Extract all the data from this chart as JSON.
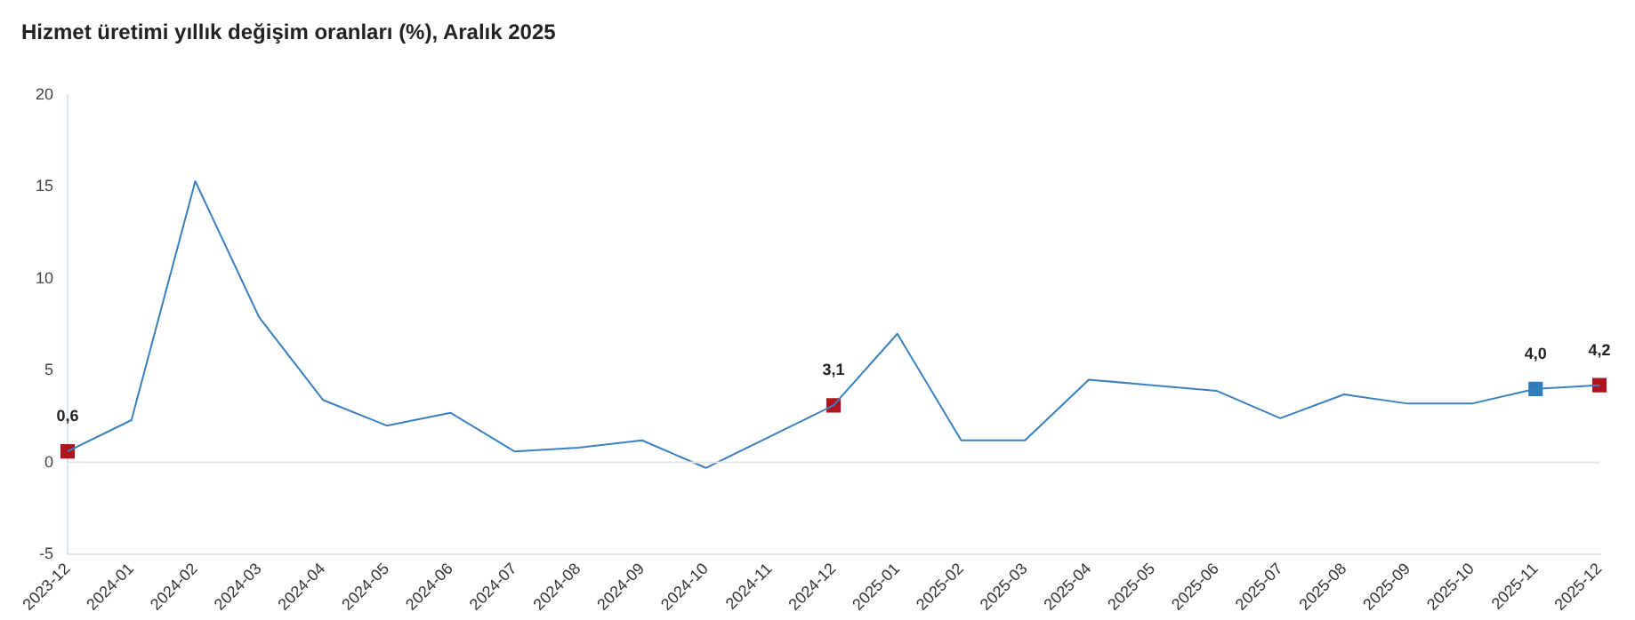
{
  "chart_data": {
    "type": "line",
    "title": "Hizmet üretimi yıllık değişim oranları (%), Aralık 2025",
    "categories": [
      "2023-12",
      "2024-01",
      "2024-02",
      "2024-03",
      "2024-04",
      "2024-05",
      "2024-06",
      "2024-07",
      "2024-08",
      "2024-09",
      "2024-10",
      "2024-11",
      "2024-12",
      "2025-01",
      "2025-02",
      "2025-03",
      "2025-04",
      "2025-05",
      "2025-06",
      "2025-07",
      "2025-08",
      "2025-09",
      "2025-10",
      "2025-11",
      "2025-12"
    ],
    "series": [
      {
        "type": "line",
        "color": "#3a80c0",
        "marker": "none",
        "values": [
          0.6,
          2.3,
          15.3,
          7.9,
          3.4,
          2.0,
          2.7,
          0.6,
          0.8,
          1.2,
          -0.3,
          1.4,
          3.1,
          7.0,
          1.2,
          1.2,
          4.5,
          4.2,
          3.9,
          2.4,
          3.7,
          3.2,
          3.2,
          4.0,
          4.2
        ]
      },
      {
        "type": "scatter",
        "marker": "square",
        "colors": [
          "#b0141c",
          null,
          null,
          null,
          null,
          null,
          null,
          null,
          null,
          null,
          null,
          null,
          "#b0141c",
          null,
          null,
          null,
          null,
          null,
          null,
          null,
          null,
          null,
          null,
          "#2f7dbd",
          "#b0141c"
        ],
        "values": [
          0.6,
          null,
          null,
          null,
          null,
          null,
          null,
          null,
          null,
          null,
          null,
          null,
          3.1,
          null,
          null,
          null,
          null,
          null,
          null,
          null,
          null,
          null,
          null,
          4.0,
          4.2
        ],
        "value_labels": [
          "0,6",
          null,
          null,
          null,
          null,
          null,
          null,
          null,
          null,
          null,
          null,
          null,
          "3,1",
          null,
          null,
          null,
          null,
          null,
          null,
          null,
          null,
          null,
          null,
          "4,0",
          "4,2"
        ]
      }
    ],
    "ylim": [
      -5,
      20
    ],
    "yticks": [
      -5,
      0,
      5,
      10,
      15,
      20
    ],
    "grid": false,
    "legend": false,
    "ref_lines": [
      {
        "axis": "y",
        "value": 0,
        "color": "#e6e6e6"
      }
    ]
  }
}
